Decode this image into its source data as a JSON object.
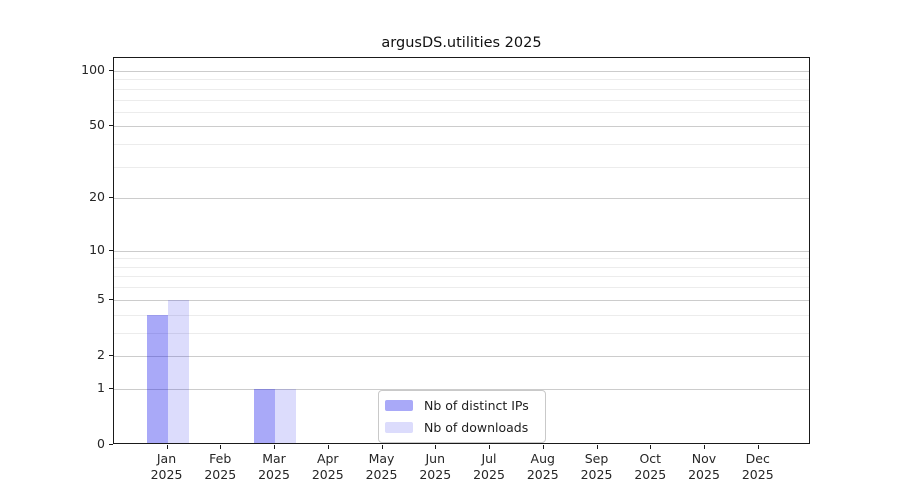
{
  "chart_data": {
    "type": "bar",
    "title": "argusDS.utilities 2025",
    "scale": "log10(1+v)",
    "grid": "on",
    "legend_position": "lower-center-inside",
    "months": [
      "Jan",
      "Feb",
      "Mar",
      "Apr",
      "May",
      "Jun",
      "Jul",
      "Aug",
      "Sep",
      "Oct",
      "Nov",
      "Dec"
    ],
    "year": "2025",
    "y_major_ticks": [
      0,
      1,
      2,
      5,
      10,
      20,
      50,
      100
    ],
    "y_minor_ticks": [
      3,
      4,
      6,
      7,
      8,
      9,
      30,
      40,
      60,
      70,
      80,
      90
    ],
    "ylim": [
      0,
      120
    ],
    "series": [
      {
        "name": "Nb of distinct IPs",
        "color": "rgba(10,10,235,0.35)",
        "values": [
          4,
          0,
          1,
          0,
          0,
          0,
          0,
          0,
          0,
          0,
          0,
          0
        ]
      },
      {
        "name": "Nb of downloads",
        "color": "rgba(10,10,235,0.14)",
        "values": [
          5,
          0,
          1,
          0,
          0,
          0,
          0,
          0,
          0,
          0,
          0,
          0
        ]
      }
    ],
    "colors": {
      "major_grid": "#cccccc",
      "minor_grid": "#ececec",
      "spine": "#1a1a1a",
      "tick_text": "#262626"
    }
  }
}
